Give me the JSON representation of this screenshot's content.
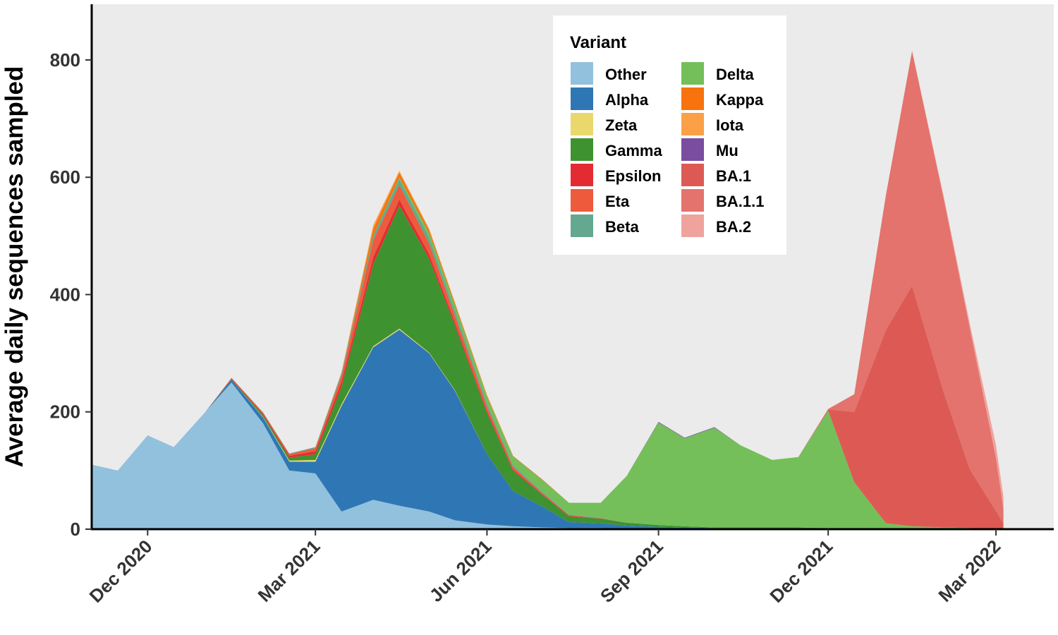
{
  "chart_data": {
    "type": "area",
    "stacked": true,
    "title": "",
    "xlabel": "",
    "ylabel": "Average daily sequences sampled",
    "ylim": [
      0,
      895
    ],
    "xlim": [
      "2020-11-01",
      "2022-04-01"
    ],
    "yticks": [
      0,
      200,
      400,
      600,
      800
    ],
    "xticks": [
      {
        "label": "Dec 2020",
        "date": "2020-12-01"
      },
      {
        "label": "Mar 2021",
        "date": "2021-03-01"
      },
      {
        "label": "Jun 2021",
        "date": "2021-06-01"
      },
      {
        "label": "Sep 2021",
        "date": "2021-09-01"
      },
      {
        "label": "Dec 2021",
        "date": "2021-12-01"
      },
      {
        "label": "Mar 2022",
        "date": "2022-03-01"
      }
    ],
    "grid": false,
    "background": "#ebebeb",
    "legend": {
      "title": "Variant",
      "placement": "top-center",
      "columns": 2
    },
    "dates": [
      "2020-11-01",
      "2020-11-15",
      "2020-12-01",
      "2020-12-15",
      "2021-01-01",
      "2021-01-15",
      "2021-02-01",
      "2021-02-15",
      "2021-03-01",
      "2021-03-15",
      "2021-04-01",
      "2021-04-15",
      "2021-05-01",
      "2021-05-15",
      "2021-06-01",
      "2021-06-15",
      "2021-07-01",
      "2021-07-15",
      "2021-08-01",
      "2021-08-15",
      "2021-09-01",
      "2021-09-15",
      "2021-10-01",
      "2021-10-15",
      "2021-11-01",
      "2021-11-15",
      "2021-12-01",
      "2021-12-15",
      "2022-01-01",
      "2022-01-15",
      "2022-02-01",
      "2022-02-15",
      "2022-03-01",
      "2022-03-05"
    ],
    "series": [
      {
        "name": "Other",
        "color": "#92c1de",
        "values": [
          110,
          100,
          160,
          140,
          200,
          250,
          180,
          100,
          95,
          30,
          50,
          40,
          30,
          15,
          8,
          5,
          3,
          2,
          2,
          1,
          1,
          1,
          1,
          1,
          1,
          1,
          1,
          0,
          0,
          0,
          0,
          0,
          0,
          0
        ]
      },
      {
        "name": "Alpha",
        "color": "#2f77b4",
        "values": [
          0,
          0,
          0,
          0,
          0,
          5,
          10,
          15,
          20,
          180,
          260,
          300,
          270,
          220,
          120,
          60,
          35,
          10,
          8,
          5,
          3,
          2,
          1,
          1,
          1,
          1,
          1,
          0,
          0,
          0,
          0,
          0,
          0,
          0
        ]
      },
      {
        "name": "Zeta",
        "color": "#ead86d",
        "values": [
          0,
          0,
          0,
          0,
          0,
          0,
          1,
          2,
          3,
          3,
          2,
          2,
          1,
          1,
          0,
          0,
          0,
          0,
          0,
          0,
          0,
          0,
          0,
          0,
          0,
          0,
          0,
          0,
          0,
          0,
          0,
          0,
          0,
          0
        ]
      },
      {
        "name": "Gamma",
        "color": "#3f9230",
        "values": [
          0,
          0,
          0,
          0,
          0,
          1,
          3,
          5,
          10,
          30,
          140,
          210,
          160,
          110,
          70,
          35,
          20,
          10,
          8,
          5,
          3,
          2,
          1,
          1,
          1,
          1,
          0,
          0,
          0,
          0,
          0,
          0,
          0,
          0
        ]
      },
      {
        "name": "Epsilon",
        "color": "#e52b32",
        "values": [
          0,
          0,
          0,
          0,
          0,
          1,
          2,
          3,
          5,
          8,
          12,
          10,
          8,
          5,
          3,
          2,
          1,
          1,
          0,
          0,
          0,
          0,
          0,
          0,
          0,
          0,
          0,
          0,
          0,
          0,
          0,
          0,
          0,
          0
        ]
      },
      {
        "name": "Eta",
        "color": "#ee5a3c",
        "values": [
          0,
          0,
          0,
          0,
          0,
          1,
          2,
          3,
          5,
          10,
          28,
          25,
          18,
          12,
          8,
          4,
          2,
          1,
          1,
          0,
          0,
          0,
          0,
          0,
          0,
          0,
          0,
          0,
          0,
          0,
          0,
          0,
          0,
          0
        ]
      },
      {
        "name": "Beta",
        "color": "#64a88f",
        "values": [
          0,
          0,
          0,
          0,
          0,
          0,
          1,
          1,
          2,
          5,
          8,
          10,
          10,
          8,
          5,
          3,
          2,
          1,
          1,
          0,
          0,
          0,
          0,
          0,
          0,
          0,
          0,
          0,
          0,
          0,
          0,
          0,
          0,
          0
        ]
      },
      {
        "name": "Delta",
        "color": "#74bf59",
        "values": [
          0,
          0,
          0,
          0,
          0,
          0,
          0,
          0,
          0,
          0,
          0,
          3,
          8,
          10,
          12,
          15,
          20,
          20,
          25,
          80,
          175,
          150,
          170,
          140,
          115,
          120,
          200,
          80,
          10,
          5,
          3,
          2,
          1,
          0
        ]
      },
      {
        "name": "Kappa",
        "color": "#f8720e",
        "values": [
          0,
          0,
          0,
          0,
          0,
          0,
          0,
          0,
          0,
          0,
          12,
          8,
          5,
          3,
          2,
          1,
          1,
          0,
          0,
          0,
          0,
          0,
          0,
          0,
          0,
          0,
          0,
          0,
          0,
          0,
          0,
          0,
          0,
          0
        ]
      },
      {
        "name": "Iota",
        "color": "#fba046",
        "values": [
          0,
          0,
          0,
          0,
          0,
          0,
          0,
          0,
          0,
          2,
          6,
          3,
          2,
          1,
          1,
          0,
          0,
          0,
          0,
          0,
          0,
          0,
          0,
          0,
          0,
          0,
          0,
          0,
          0,
          0,
          0,
          0,
          0,
          0
        ]
      },
      {
        "name": "Mu",
        "color": "#7b4da1",
        "values": [
          0,
          0,
          0,
          0,
          0,
          0,
          0,
          0,
          0,
          0,
          0,
          0,
          0,
          0,
          0,
          0,
          0,
          0,
          0,
          0,
          1,
          1,
          1,
          0,
          0,
          0,
          0,
          0,
          0,
          0,
          0,
          0,
          0,
          0
        ]
      },
      {
        "name": "BA.1",
        "color": "#dd5a54",
        "values": [
          0,
          0,
          0,
          0,
          0,
          0,
          0,
          0,
          0,
          0,
          0,
          0,
          0,
          0,
          0,
          0,
          0,
          0,
          0,
          0,
          0,
          0,
          0,
          0,
          0,
          0,
          2,
          120,
          330,
          410,
          230,
          100,
          30,
          10
        ]
      },
      {
        "name": "BA.1.1",
        "color": "#e3736c",
        "values": [
          0,
          0,
          0,
          0,
          0,
          0,
          0,
          0,
          0,
          0,
          0,
          0,
          0,
          0,
          0,
          0,
          0,
          0,
          0,
          0,
          0,
          0,
          0,
          0,
          0,
          0,
          1,
          30,
          230,
          400,
          330,
          240,
          90,
          25
        ]
      },
      {
        "name": "BA.2",
        "color": "#f0a29c",
        "values": [
          0,
          0,
          0,
          0,
          0,
          0,
          0,
          0,
          0,
          0,
          0,
          0,
          0,
          0,
          0,
          0,
          0,
          0,
          0,
          0,
          0,
          0,
          0,
          0,
          0,
          0,
          0,
          0,
          0,
          1,
          4,
          8,
          22,
          20
        ]
      }
    ]
  }
}
